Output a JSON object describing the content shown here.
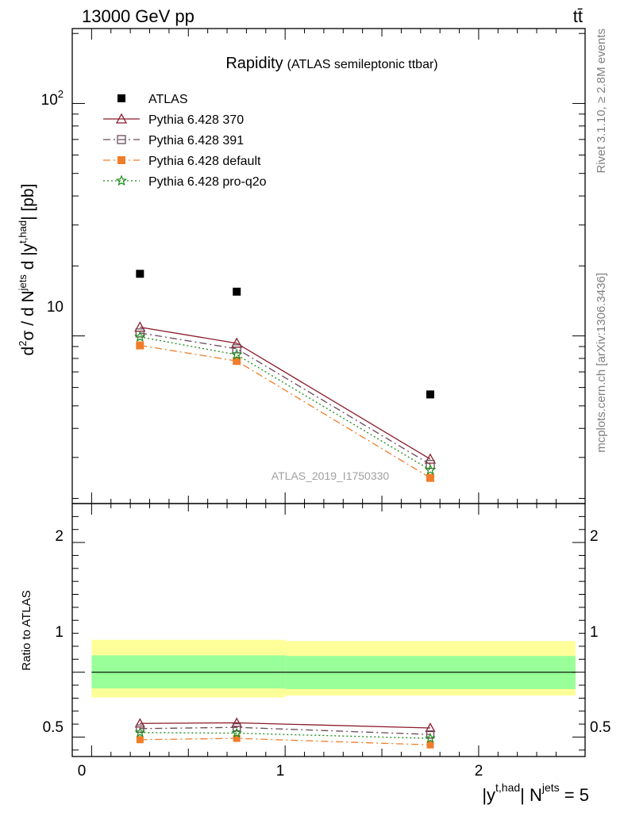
{
  "header": {
    "left_label": "13000 GeV pp",
    "right_label": "tt̄"
  },
  "side_labels": {
    "rivet": "Rivet 3.1.10, ≥ 2.8M events",
    "mcplots": "mcplots.cern.ch [arXiv:1306.3436]"
  },
  "chart_data": [
    {
      "type": "scatter",
      "panel": "main",
      "title": "Rapidity",
      "subtitle": "(ATLAS semileptonic ttbar)",
      "watermark": "ATLAS_2019_I1750330",
      "ylabel": "d²σ / d Nʲᵉᵗˢ d |yᵗ·ʰᵃᵈ| [pb]",
      "ylabel_parts": {
        "d1": "d",
        "sup2": "2",
        "sigma": "σ / d N",
        "jets": "jets",
        "d2": " d |y",
        "thad": "t,had",
        "pb": "| [pb]"
      },
      "yscale": "log",
      "ylim": [
        1.9,
        210
      ],
      "xlim": [
        -0.1,
        2.55
      ],
      "y_tick_labels": {
        "t10": "10",
        "t100_base": "10",
        "t100_exp": "2"
      },
      "legend_position": "top-left",
      "x": [
        0.25,
        0.75,
        1.75
      ],
      "series": [
        {
          "name": "ATLAS",
          "values": [
            18.5,
            15.5,
            5.6
          ],
          "color": "#000000",
          "marker": "square-filled",
          "line": "none"
        },
        {
          "name": "Pythia 6.428 370",
          "values": [
            10.9,
            9.3,
            2.95
          ],
          "color": "#8b1a2b",
          "marker": "triangle-open",
          "line": "solid"
        },
        {
          "name": "Pythia 6.428 391",
          "values": [
            10.3,
            8.8,
            2.8
          ],
          "color": "#6b4a5a",
          "marker": "square-open",
          "line": "dashdot"
        },
        {
          "name": "Pythia 6.428 default",
          "values": [
            9.1,
            7.8,
            2.45
          ],
          "color": "#f07d2a",
          "marker": "square-filled",
          "line": "dashdot"
        },
        {
          "name": "Pythia 6.428 pro-q2o",
          "values": [
            9.9,
            8.3,
            2.65
          ],
          "color": "#1a8a1a",
          "marker": "star-open",
          "line": "dotted"
        }
      ]
    },
    {
      "type": "line",
      "panel": "ratio",
      "ylabel": "Ratio to ATLAS",
      "ylim": [
        0.35,
        2.3
      ],
      "xlim": [
        -0.1,
        2.55
      ],
      "y_tick_labels": [
        "0.5",
        "1",
        "2"
      ],
      "x_tick_labels": [
        "0",
        "1",
        "2"
      ],
      "xlabel_parts": {
        "y": "|y",
        "thad": "t,had",
        "n": "| N",
        "jets": "jets",
        "eq": " = 5"
      },
      "bands": {
        "bins": [
          [
            0.0,
            1.0
          ],
          [
            1.0,
            2.5
          ]
        ],
        "inner": [
          [
            0.875,
            1.13
          ],
          [
            0.87,
            1.125
          ]
        ],
        "outer": [
          [
            0.805,
            1.25
          ],
          [
            0.82,
            1.24
          ]
        ],
        "inner_color": "#99ff99",
        "outer_color": "#ffff99"
      },
      "x": [
        0.25,
        0.75,
        1.75
      ],
      "series": [
        {
          "name": "Pythia 6.428 370",
          "values": [
            0.605,
            0.61,
            0.57
          ],
          "color": "#8b1a2b",
          "marker": "triangle-open",
          "line": "solid"
        },
        {
          "name": "Pythia 6.428 391",
          "values": [
            0.565,
            0.575,
            0.52
          ],
          "color": "#6b4a5a",
          "marker": "square-open",
          "line": "dashdot"
        },
        {
          "name": "Pythia 6.428 default",
          "values": [
            0.48,
            0.49,
            0.44
          ],
          "color": "#f07d2a",
          "marker": "square-filled",
          "line": "dashdot"
        },
        {
          "name": "Pythia 6.428 pro-q2o",
          "values": [
            0.535,
            0.53,
            0.49
          ],
          "color": "#1a8a1a",
          "marker": "star-open",
          "line": "dotted"
        }
      ]
    }
  ]
}
